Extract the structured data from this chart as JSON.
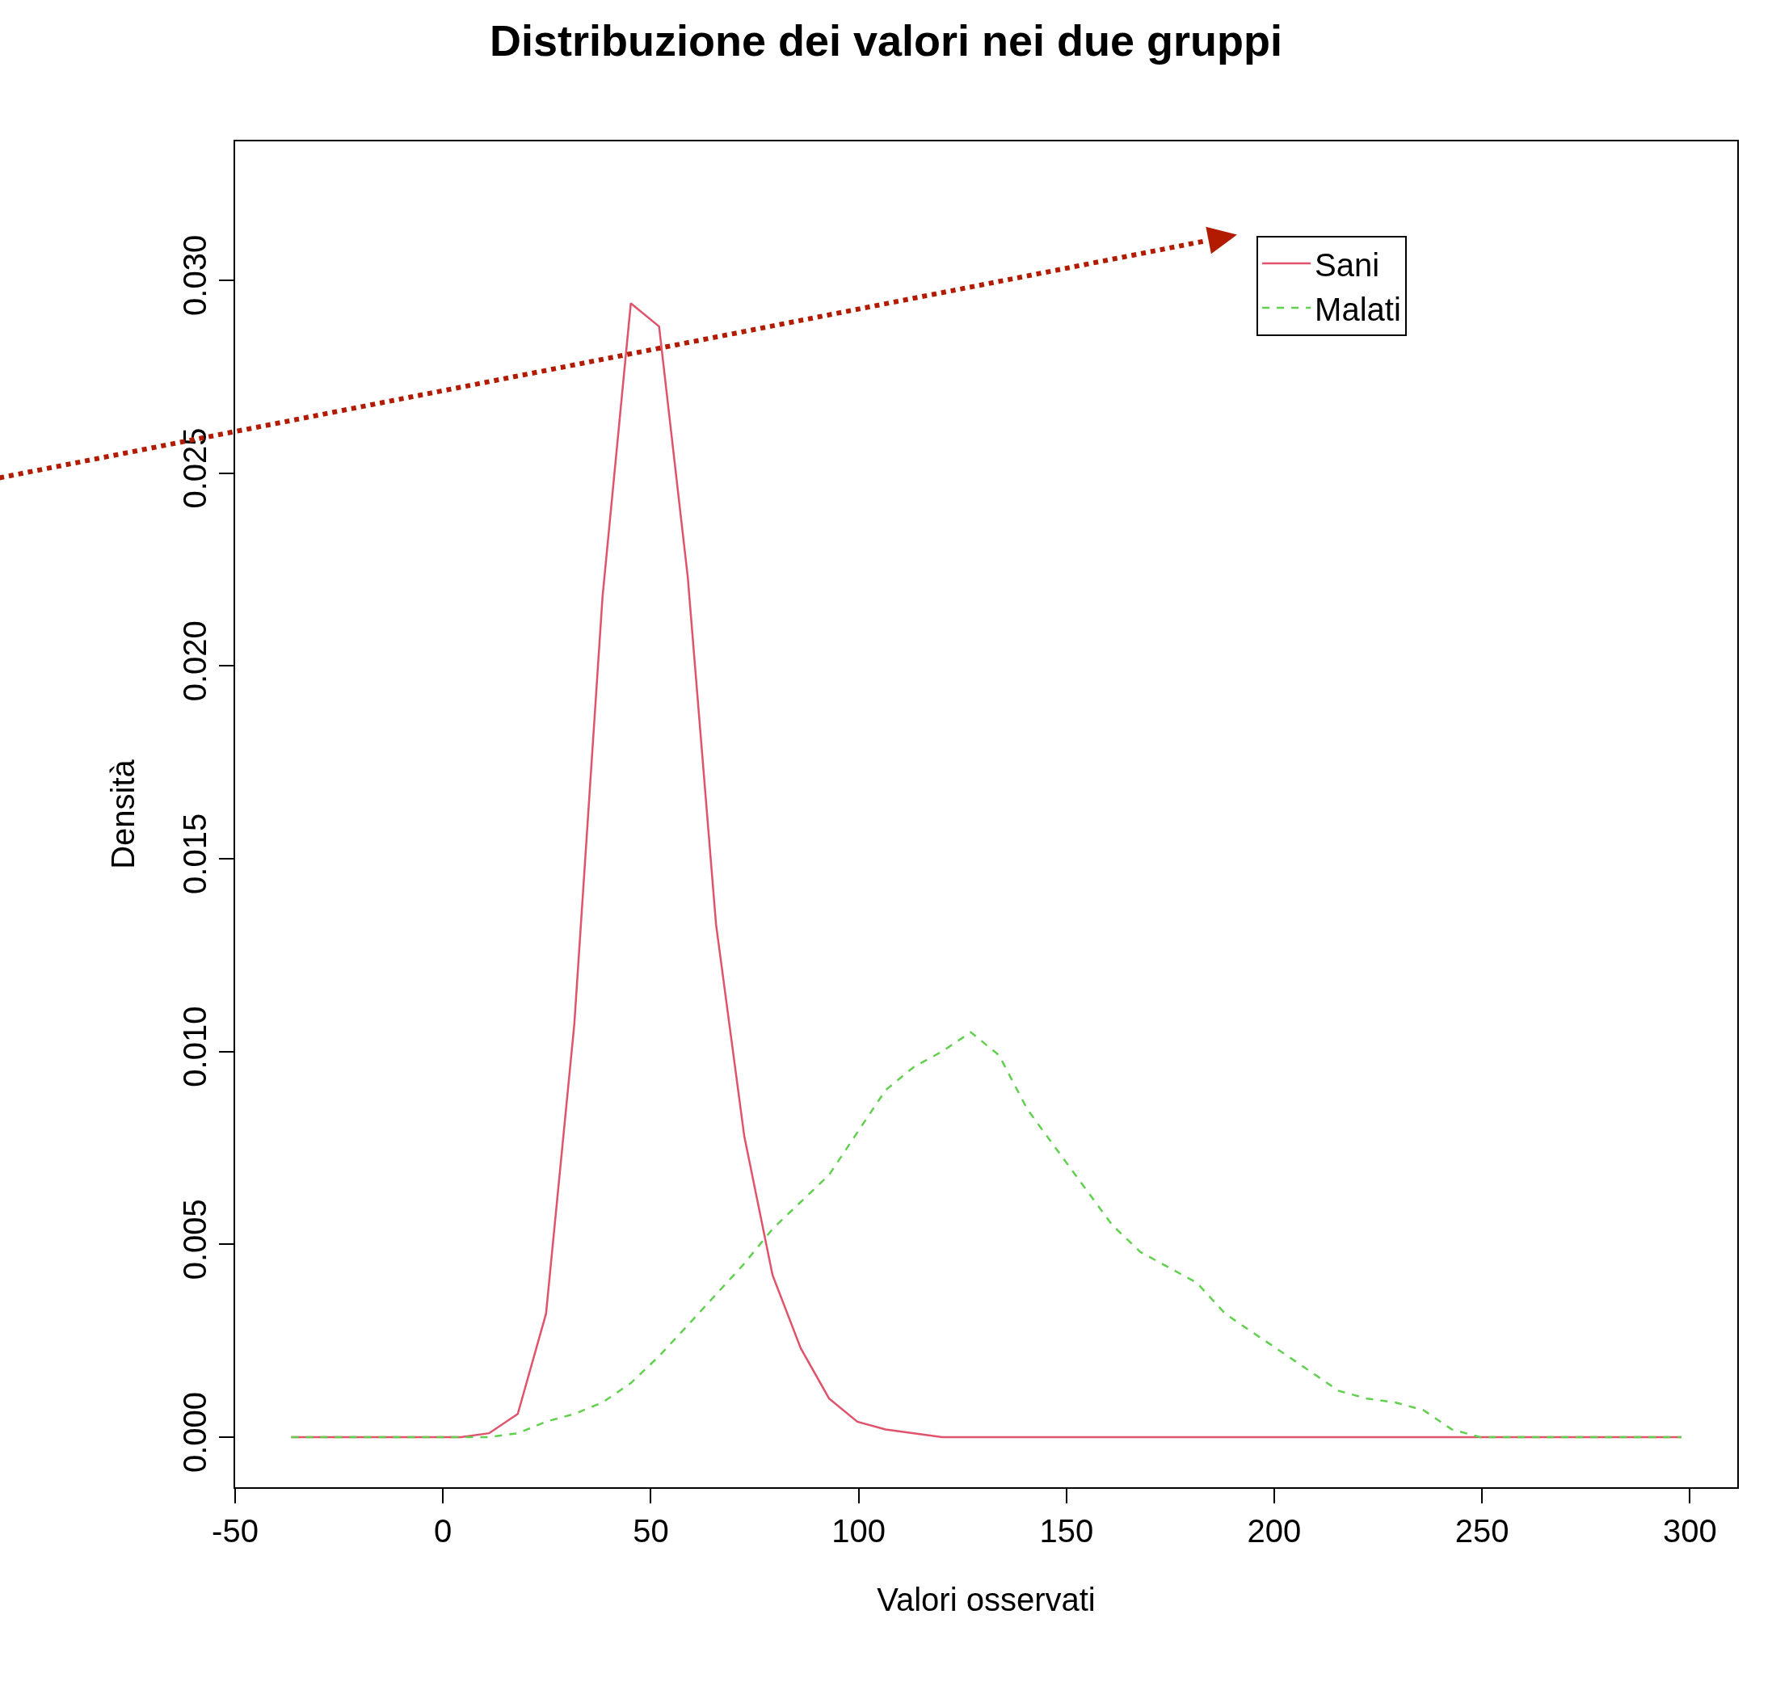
{
  "chart_data": {
    "type": "line",
    "title": "Distribuzione dei valori nei due gruppi",
    "xlabel": "Valori osservati",
    "ylabel": "Densità",
    "xlim": [
      -50,
      311.4
    ],
    "ylim": [
      -0.0013,
      0.0336
    ],
    "xticks": [
      -50,
      0,
      50,
      100,
      150,
      200,
      250,
      300
    ],
    "yticks": [
      {
        "value": 0,
        "label": "0.000"
      },
      {
        "value": 0.005,
        "label": "0.005"
      },
      {
        "value": 0.01,
        "label": "0.010"
      },
      {
        "value": 0.015,
        "label": "0.015"
      },
      {
        "value": 0.02,
        "label": "0.020"
      },
      {
        "value": 0.025,
        "label": "0.025"
      },
      {
        "value": 0.03,
        "label": "0.030"
      }
    ],
    "legend": "top right",
    "marker": "none",
    "series": [
      {
        "name": "Sani",
        "color": "#df536b",
        "line_style": "solid",
        "x": [
          -36.5,
          4.3,
          11.1,
          18.0,
          24.8,
          31.6,
          38.4,
          45.2,
          52.0,
          58.9,
          65.7,
          72.5,
          79.3,
          86.1,
          92.9,
          99.7,
          106.5,
          113.3,
          120.1,
          127.0,
          298.0
        ],
        "values": [
          0,
          0,
          0.0001,
          0.0006,
          0.0032,
          0.0107,
          0.0218,
          0.0294,
          0.0288,
          0.0223,
          0.0133,
          0.0078,
          0.0042,
          0.0023,
          0.001,
          0.0004,
          0.0002,
          0.0001,
          0,
          0,
          0
        ]
      },
      {
        "name": "Malati",
        "color": "#61d04f",
        "line_style": "dashed",
        "x": [
          -36.5,
          4.3,
          11.1,
          18.0,
          24.8,
          31.6,
          38.4,
          45.2,
          52.0,
          58.9,
          65.7,
          72.5,
          79.3,
          86.1,
          92.9,
          99.7,
          106.5,
          113.3,
          120.1,
          127.0,
          133.8,
          140.6,
          147.4,
          154.2,
          161.0,
          167.8,
          174.6,
          181.4,
          188.2,
          195.0,
          201.9,
          208.7,
          215.5,
          222.3,
          229.1,
          235.9,
          242.7,
          249.5,
          256.3,
          298.0
        ],
        "values": [
          0,
          0,
          0,
          0.0001,
          0.0004,
          0.0006,
          0.0009,
          0.0014,
          0.0021,
          0.0029,
          0.0037,
          0.0045,
          0.0054,
          0.0061,
          0.0068,
          0.0079,
          0.009,
          0.0096,
          0.01,
          0.0105,
          0.0099,
          0.0085,
          0.0075,
          0.0065,
          0.0055,
          0.0048,
          0.0044,
          0.004,
          0.0032,
          0.0027,
          0.0022,
          0.0017,
          0.0012,
          0.001,
          0.0009,
          0.0007,
          0.0002,
          0,
          0,
          0
        ]
      }
    ]
  }
}
